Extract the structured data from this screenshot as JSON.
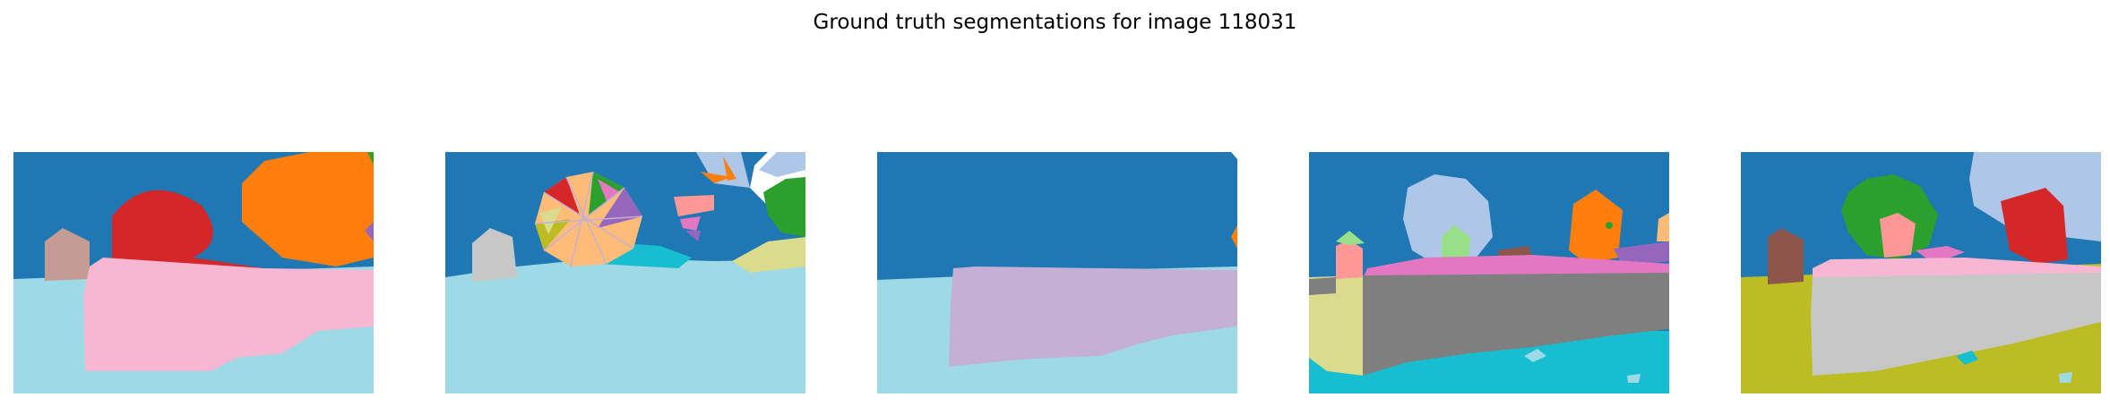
{
  "figure": {
    "title": "Ground truth segmentations for image 118031"
  },
  "panels": [
    {
      "name": "segmentation-panel-1"
    },
    {
      "name": "segmentation-panel-2"
    },
    {
      "name": "segmentation-panel-3"
    },
    {
      "name": "segmentation-panel-4"
    },
    {
      "name": "segmentation-panel-5"
    }
  ],
  "palette": {
    "sky": "#1f77b4",
    "water_light": "#9edae5",
    "water_cyan": "#17becf",
    "pink": "#f7b6d2",
    "red": "#d62728",
    "orange": "#ff7f0e",
    "tan": "#c49c94",
    "gray": "#c7c7c7",
    "dark_gray": "#7f7f7f",
    "lavender": "#c5b0d5",
    "olive": "#bcbd22",
    "khaki": "#dbdb8d",
    "green": "#2ca02c",
    "light_green": "#98df8a",
    "light_blue": "#aec7e8",
    "brown": "#8c564b",
    "salmon": "#ff9896",
    "magenta": "#e377c2",
    "purple": "#9467bd",
    "peach": "#ffbb78"
  }
}
